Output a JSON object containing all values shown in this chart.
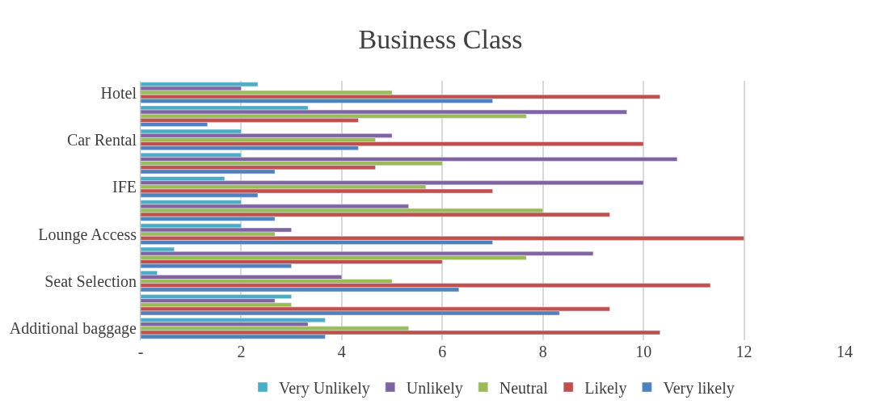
{
  "chart_data": {
    "type": "bar",
    "orientation": "horizontal",
    "title": "Business Class",
    "categories": [
      "Hotel",
      null,
      "Car Rental",
      null,
      "IFE",
      null,
      "Lounge Access",
      null,
      "Seat Selection",
      null,
      "Additional baggage"
    ],
    "series": [
      {
        "name": "Very Unlikely",
        "color": "#4bacc6",
        "values": [
          2.33,
          3.33,
          2,
          2,
          1.67,
          2,
          2,
          0.67,
          0.33,
          3,
          3.67
        ]
      },
      {
        "name": "Unlikely",
        "color": "#8064a2",
        "values": [
          2,
          9.67,
          5,
          10.67,
          10,
          5.33,
          3,
          9,
          4,
          2.67,
          3.33
        ]
      },
      {
        "name": "Neutral",
        "color": "#9bbb59",
        "values": [
          5,
          7.67,
          4.67,
          6,
          5.67,
          8,
          2.67,
          7.67,
          5,
          3,
          5.33
        ]
      },
      {
        "name": "Likely",
        "color": "#c0504d",
        "values": [
          10.33,
          4.33,
          10,
          4.67,
          7,
          9.33,
          12,
          6,
          11.33,
          9.33,
          10.33
        ]
      },
      {
        "name": "Very likely",
        "color": "#4f81bd",
        "values": [
          7,
          1.33,
          4.33,
          2.67,
          2.33,
          2.67,
          7,
          3,
          6.33,
          8.33,
          3.67
        ]
      }
    ],
    "xlim": [
      0,
      14
    ],
    "xticks": [
      {
        "value": 0,
        "label": "-"
      },
      2,
      4,
      6,
      8,
      10,
      12,
      14
    ],
    "grid": "x",
    "legend": "bottom"
  }
}
